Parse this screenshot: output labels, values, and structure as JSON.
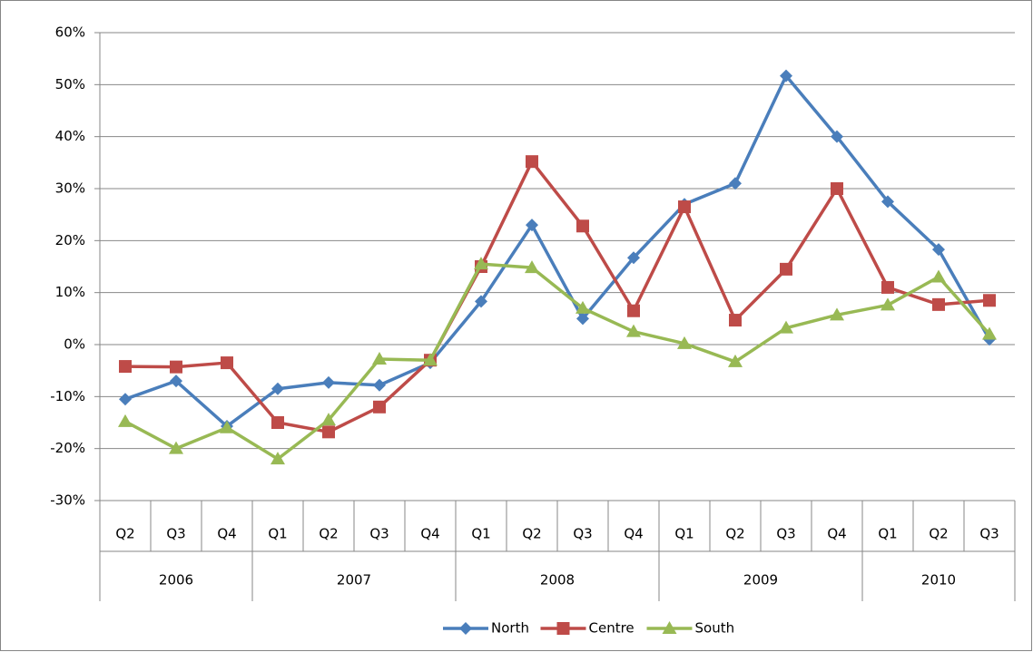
{
  "chart_data": {
    "type": "line",
    "categories": [
      "Q2",
      "Q3",
      "Q4",
      "Q1",
      "Q2",
      "Q3",
      "Q4",
      "Q1",
      "Q2",
      "Q3",
      "Q4",
      "Q1",
      "Q2",
      "Q3",
      "Q4",
      "Q1",
      "Q2",
      "Q3"
    ],
    "category_groups": [
      "2006",
      "2006",
      "2006",
      "2007",
      "2007",
      "2007",
      "2007",
      "2008",
      "2008",
      "2008",
      "2008",
      "2009",
      "2009",
      "2009",
      "2009",
      "2010",
      "2010",
      "2010"
    ],
    "series": [
      {
        "name": "North",
        "color": "#4a7ebb",
        "marker": "diamond",
        "values": [
          -10.5,
          -7,
          -15.7,
          -8.5,
          -7.3,
          -7.8,
          -3.5,
          8.3,
          23,
          5,
          16.7,
          27,
          31,
          51.7,
          40,
          27.5,
          18.3,
          1
        ]
      },
      {
        "name": "Centre",
        "color": "#be4b48",
        "marker": "square",
        "values": [
          -4.2,
          -4.3,
          -3.5,
          -15,
          -16.8,
          -12,
          -3,
          15,
          35.2,
          22.8,
          6.5,
          26.5,
          4.7,
          14.5,
          30,
          11,
          7.7,
          8.5
        ]
      },
      {
        "name": "South",
        "color": "#98b954",
        "marker": "triangle",
        "values": [
          -14.8,
          -20,
          -16,
          -22,
          -14.5,
          -2.8,
          -3,
          15.5,
          14.8,
          7,
          2.5,
          0.2,
          -3.3,
          3.2,
          5.7,
          7.6,
          13,
          2
        ]
      }
    ],
    "ylim": [
      -30,
      60
    ],
    "yticks": [
      {
        "value": -30,
        "label": "-30%"
      },
      {
        "value": -20,
        "label": "-20%"
      },
      {
        "value": -10,
        "label": "-10%"
      },
      {
        "value": 0,
        "label": "0%"
      },
      {
        "value": 10,
        "label": "10%"
      },
      {
        "value": 20,
        "label": "20%"
      },
      {
        "value": 30,
        "label": "30%"
      },
      {
        "value": 40,
        "label": "40%"
      },
      {
        "value": 50,
        "label": "50%"
      },
      {
        "value": 60,
        "label": "60%"
      }
    ],
    "grid": true,
    "legend": "bottom"
  }
}
